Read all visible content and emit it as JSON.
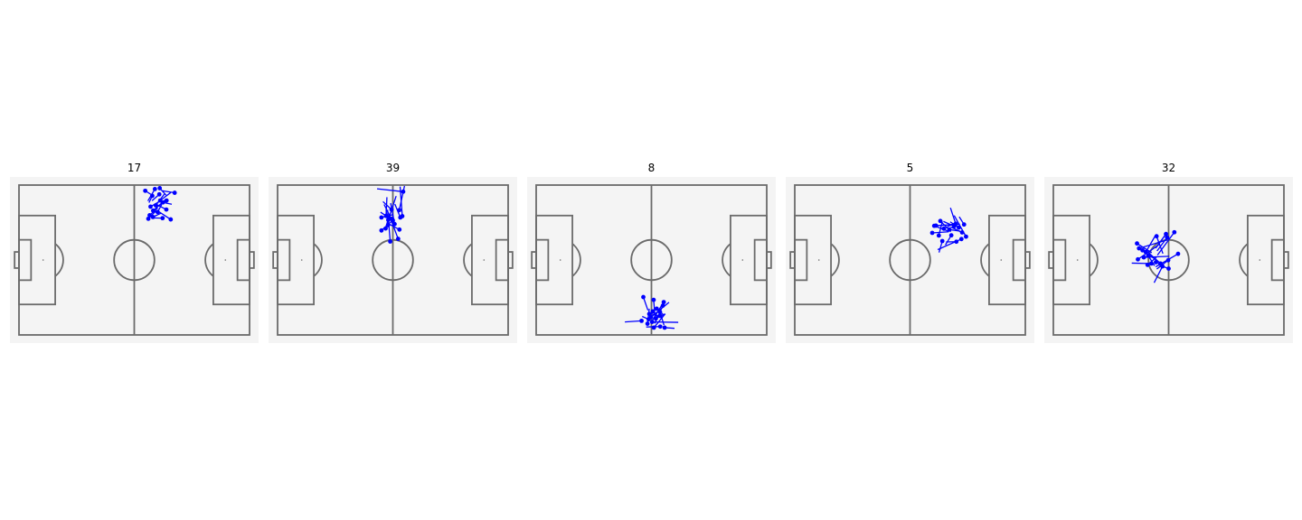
{
  "style": {
    "pitch_bg": "#f4f4f4",
    "line_color": "#6b6b6b",
    "pass_color": "#0000ff"
  },
  "chart_data": [
    {
      "type": "scatter",
      "title": "17",
      "pitch": {
        "length": 105,
        "width": 68
      },
      "passes": [
        {
          "x": 57.5,
          "y": 2.6,
          "x2": 60.2,
          "y2": 4.3
        },
        {
          "x": 61.9,
          "y": 1.8,
          "x2": 58.7,
          "y2": 7.2
        },
        {
          "x": 63.9,
          "y": 4.2,
          "x2": 60.6,
          "y2": 7.1
        },
        {
          "x": 70.9,
          "y": 3.5,
          "x2": 65.4,
          "y2": 2.6
        },
        {
          "x": 64.3,
          "y": 7.0,
          "x2": 69.1,
          "y2": 3.4
        },
        {
          "x": 62.3,
          "y": 9.2,
          "x2": 66.2,
          "y2": 4.1
        },
        {
          "x": 59.9,
          "y": 9.8,
          "x2": 64.9,
          "y2": 6.9
        },
        {
          "x": 65.5,
          "y": 7.9,
          "x2": 69.6,
          "y2": 8.7
        },
        {
          "x": 67.2,
          "y": 7.0,
          "x2": 63.5,
          "y2": 9.6
        },
        {
          "x": 61.1,
          "y": 11.6,
          "x2": 66.6,
          "y2": 6.7
        },
        {
          "x": 63.1,
          "y": 12.2,
          "x2": 65.0,
          "y2": 8.9
        },
        {
          "x": 59.5,
          "y": 13.7,
          "x2": 63.2,
          "y2": 10.3
        },
        {
          "x": 61.0,
          "y": 14.5,
          "x2": 64.8,
          "y2": 12.7
        },
        {
          "x": 67.1,
          "y": 11.1,
          "x2": 62.4,
          "y2": 8.7
        },
        {
          "x": 65.4,
          "y": 15.0,
          "x2": 60.6,
          "y2": 14.9
        },
        {
          "x": 69.1,
          "y": 15.6,
          "x2": 63.9,
          "y2": 12.2
        },
        {
          "x": 58.9,
          "y": 15.3,
          "x2": 62.4,
          "y2": 11.7
        },
        {
          "x": 64.1,
          "y": 1.4,
          "x2": 67.0,
          "y2": 4.6
        },
        {
          "x": 60.7,
          "y": 4.9,
          "x2": 59.2,
          "y2": 8.0
        }
      ]
    },
    {
      "type": "scatter",
      "title": "39",
      "pitch": {
        "length": 105,
        "width": 68
      },
      "passes": [
        {
          "x": 57.2,
          "y": 3.0,
          "x2": 45.3,
          "y2": 1.7
        },
        {
          "x": 55.4,
          "y": 11.4,
          "x2": 57.8,
          "y2": 0.4
        },
        {
          "x": 56.8,
          "y": 14.1,
          "x2": 55.8,
          "y2": 0.7
        },
        {
          "x": 51.9,
          "y": 11.1,
          "x2": 48.0,
          "y2": 7.5
        },
        {
          "x": 49.4,
          "y": 14.0,
          "x2": 49.8,
          "y2": 5.5
        },
        {
          "x": 51.8,
          "y": 15.3,
          "x2": 48.5,
          "y2": 8.8
        },
        {
          "x": 47.3,
          "y": 14.7,
          "x2": 52.6,
          "y2": 13.4
        },
        {
          "x": 53.3,
          "y": 17.7,
          "x2": 51.5,
          "y2": 8.2
        },
        {
          "x": 50.3,
          "y": 18.2,
          "x2": 49.4,
          "y2": 11.1
        },
        {
          "x": 47.3,
          "y": 20.6,
          "x2": 52.8,
          "y2": 15.7
        },
        {
          "x": 49.2,
          "y": 19.7,
          "x2": 50.8,
          "y2": 13.8
        },
        {
          "x": 51.3,
          "y": 25.6,
          "x2": 50.1,
          "y2": 11.3
        },
        {
          "x": 54.9,
          "y": 24.4,
          "x2": 51.9,
          "y2": 16.4
        },
        {
          "x": 52.5,
          "y": 16.0,
          "x2": 46.9,
          "y2": 12.3
        },
        {
          "x": 55.5,
          "y": 20.2,
          "x2": 50.0,
          "y2": 17.3
        },
        {
          "x": 55.9,
          "y": 14.7,
          "x2": 53.4,
          "y2": 8.6
        },
        {
          "x": 50.4,
          "y": 15.8,
          "x2": 54.0,
          "y2": 5.0
        }
      ]
    },
    {
      "type": "scatter",
      "title": "8",
      "pitch": {
        "length": 105,
        "width": 68
      },
      "passes": [
        {
          "x": 48.8,
          "y": 50.8,
          "x2": 50.9,
          "y2": 56.8
        },
        {
          "x": 53.5,
          "y": 52.1,
          "x2": 54.2,
          "y2": 60.6
        },
        {
          "x": 58.1,
          "y": 53.1,
          "x2": 52.6,
          "y2": 61.9
        },
        {
          "x": 57.7,
          "y": 54.7,
          "x2": 54.0,
          "y2": 62.8
        },
        {
          "x": 54.9,
          "y": 56.1,
          "x2": 58.2,
          "y2": 59.1
        },
        {
          "x": 53.1,
          "y": 57.3,
          "x2": 55.5,
          "y2": 60.2
        },
        {
          "x": 51.5,
          "y": 58.5,
          "x2": 55.2,
          "y2": 55.8
        },
        {
          "x": 52.3,
          "y": 59.9,
          "x2": 60.5,
          "y2": 53.2
        },
        {
          "x": 56.5,
          "y": 59.4,
          "x2": 51.6,
          "y2": 58.3
        },
        {
          "x": 54.5,
          "y": 60.6,
          "x2": 58.6,
          "y2": 58.5
        },
        {
          "x": 51.2,
          "y": 60.9,
          "x2": 48.3,
          "y2": 59.6
        },
        {
          "x": 56.4,
          "y": 57.6,
          "x2": 58.2,
          "y2": 63.5
        },
        {
          "x": 48.0,
          "y": 61.6,
          "x2": 40.4,
          "y2": 62.1
        },
        {
          "x": 52.8,
          "y": 62.1,
          "x2": 64.7,
          "y2": 62.3
        },
        {
          "x": 56.5,
          "y": 64.2,
          "x2": 50.1,
          "y2": 64.4
        },
        {
          "x": 58.5,
          "y": 64.7,
          "x2": 63.0,
          "y2": 65.0
        },
        {
          "x": 53.6,
          "y": 64.7,
          "x2": 58.8,
          "y2": 58.4
        },
        {
          "x": 50.7,
          "y": 62.9,
          "x2": 51.5,
          "y2": 56.1
        }
      ]
    },
    {
      "type": "scatter",
      "title": "5",
      "pitch": {
        "length": 105,
        "width": 68
      },
      "passes": [
        {
          "x": 64.3,
          "y": 18.4,
          "x2": 75.2,
          "y2": 17.8
        },
        {
          "x": 62.6,
          "y": 21.7,
          "x2": 70.1,
          "y2": 21.2
        },
        {
          "x": 63.5,
          "y": 18.5,
          "x2": 70.1,
          "y2": 21.0
        },
        {
          "x": 67.9,
          "y": 19.8,
          "x2": 73.8,
          "y2": 16.7
        },
        {
          "x": 66.3,
          "y": 16.3,
          "x2": 71.1,
          "y2": 21.1
        },
        {
          "x": 70.4,
          "y": 20.2,
          "x2": 75.2,
          "y2": 20.9
        },
        {
          "x": 72.6,
          "y": 18.7,
          "x2": 67.7,
          "y2": 16.5
        },
        {
          "x": 73.3,
          "y": 17.6,
          "x2": 70.9,
          "y2": 10.3
        },
        {
          "x": 74.7,
          "y": 19.3,
          "x2": 70.8,
          "y2": 16.7
        },
        {
          "x": 77.1,
          "y": 17.9,
          "x2": 74.9,
          "y2": 14.4
        },
        {
          "x": 76.2,
          "y": 21.5,
          "x2": 71.0,
          "y2": 19.0
        },
        {
          "x": 71.3,
          "y": 22.8,
          "x2": 68.6,
          "y2": 27.2
        },
        {
          "x": 73.6,
          "y": 25.7,
          "x2": 68.9,
          "y2": 25.8
        },
        {
          "x": 67.2,
          "y": 25.4,
          "x2": 65.7,
          "y2": 30.6
        },
        {
          "x": 75.9,
          "y": 24.5,
          "x2": 65.1,
          "y2": 29.3
        },
        {
          "x": 78.0,
          "y": 23.4,
          "x2": 72.6,
          "y2": 13.8
        },
        {
          "x": 65.6,
          "y": 22.9,
          "x2": 67.2,
          "y2": 16.6
        }
      ]
    },
    {
      "type": "scatter",
      "title": "32",
      "pitch": {
        "length": 105,
        "width": 68
      },
      "passes": [
        {
          "x": 38.1,
          "y": 26.5,
          "x2": 44.8,
          "y2": 30.7
        },
        {
          "x": 39.0,
          "y": 28.7,
          "x2": 51.8,
          "y2": 24.9
        },
        {
          "x": 40.6,
          "y": 29.6,
          "x2": 47.5,
          "y2": 34.5
        },
        {
          "x": 42.1,
          "y": 30.4,
          "x2": 46.3,
          "y2": 23.2
        },
        {
          "x": 38.5,
          "y": 33.7,
          "x2": 48.0,
          "y2": 27.1
        },
        {
          "x": 41.2,
          "y": 32.8,
          "x2": 52.8,
          "y2": 32.3
        },
        {
          "x": 43.2,
          "y": 32.0,
          "x2": 46.1,
          "y2": 36.6
        },
        {
          "x": 44.7,
          "y": 35.6,
          "x2": 35.7,
          "y2": 35.4
        },
        {
          "x": 46.7,
          "y": 35.0,
          "x2": 50.1,
          "y2": 36.5
        },
        {
          "x": 48.8,
          "y": 35.6,
          "x2": 42.6,
          "y2": 30.0
        },
        {
          "x": 52.3,
          "y": 34.1,
          "x2": 47.1,
          "y2": 38.1
        },
        {
          "x": 49.7,
          "y": 36.9,
          "x2": 45.9,
          "y2": 44.3
        },
        {
          "x": 56.8,
          "y": 31.2,
          "x2": 46.6,
          "y2": 37.1
        },
        {
          "x": 52.5,
          "y": 37.9,
          "x2": 47.7,
          "y2": 36.1
        },
        {
          "x": 51.3,
          "y": 22.2,
          "x2": 46.6,
          "y2": 28.6
        },
        {
          "x": 55.1,
          "y": 21.4,
          "x2": 47.4,
          "y2": 31.8
        },
        {
          "x": 51.8,
          "y": 23.8,
          "x2": 47.2,
          "y2": 29.9
        },
        {
          "x": 47.0,
          "y": 23.2,
          "x2": 49.9,
          "y2": 31.1
        },
        {
          "x": 42.9,
          "y": 36.2,
          "x2": 46.9,
          "y2": 32.8
        }
      ]
    }
  ]
}
